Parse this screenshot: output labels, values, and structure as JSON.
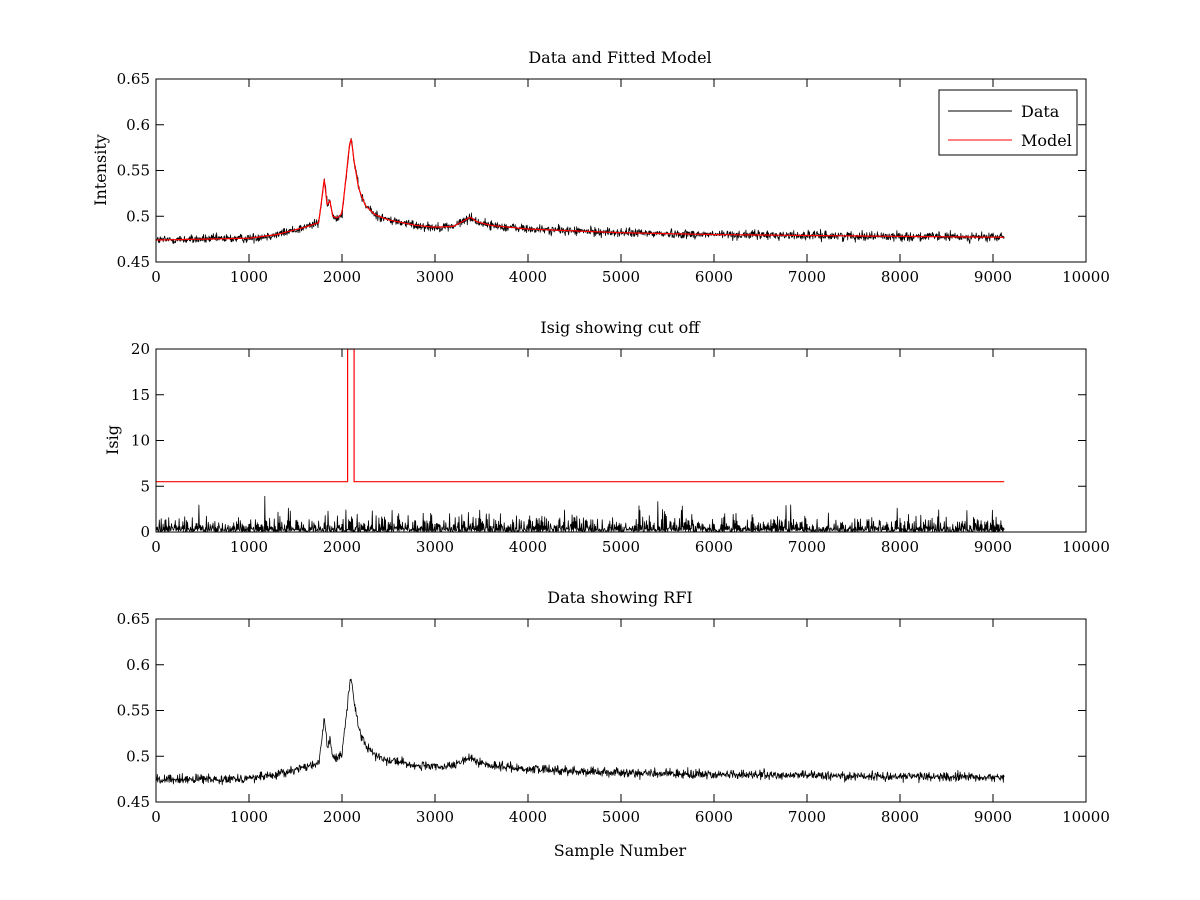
{
  "chart_data": [
    {
      "type": "line",
      "title": "Data and Fitted Model",
      "xlabel": "",
      "ylabel": "Intensity",
      "xlim": [
        0,
        10000
      ],
      "ylim": [
        0.45,
        0.65
      ],
      "xticks": [
        0,
        1000,
        2000,
        3000,
        4000,
        5000,
        6000,
        7000,
        8000,
        9000,
        10000
      ],
      "yticks": [
        0.45,
        0.5,
        0.55,
        0.6,
        0.65
      ],
      "ytick_labels": [
        "0.45",
        "0.5",
        "0.55",
        "0.6",
        "0.65"
      ],
      "grid": false,
      "legend": "top-right",
      "series": [
        {
          "name": "Data",
          "color": "#000000",
          "noise": 0.0055,
          "x": [
            0,
            500,
            1000,
            1300,
            1600,
            1750,
            1810,
            1840,
            1870,
            1900,
            1950,
            2000,
            2050,
            2080,
            2100,
            2130,
            2180,
            2250,
            2350,
            2500,
            2800,
            3000,
            3200,
            3380,
            3450,
            3600,
            4000,
            4500,
            5000,
            6000,
            7000,
            8000,
            9120
          ],
          "y": [
            0.474,
            0.475,
            0.476,
            0.48,
            0.488,
            0.493,
            0.541,
            0.512,
            0.517,
            0.5,
            0.498,
            0.503,
            0.548,
            0.578,
            0.585,
            0.56,
            0.53,
            0.512,
            0.502,
            0.496,
            0.49,
            0.488,
            0.489,
            0.499,
            0.494,
            0.49,
            0.486,
            0.484,
            0.482,
            0.48,
            0.479,
            0.478,
            0.477
          ]
        },
        {
          "name": "Model",
          "color": "#ff0000",
          "noise": 0,
          "x": [
            0,
            500,
            1000,
            1300,
            1600,
            1750,
            1810,
            1840,
            1870,
            1900,
            1950,
            2000,
            2050,
            2080,
            2100,
            2130,
            2180,
            2250,
            2350,
            2500,
            2800,
            3000,
            3200,
            3380,
            3450,
            3600,
            4000,
            4500,
            5000,
            6000,
            7000,
            8000,
            9120
          ],
          "y": [
            0.474,
            0.475,
            0.476,
            0.48,
            0.488,
            0.493,
            0.541,
            0.512,
            0.517,
            0.5,
            0.498,
            0.503,
            0.548,
            0.578,
            0.585,
            0.56,
            0.53,
            0.512,
            0.502,
            0.496,
            0.49,
            0.488,
            0.489,
            0.499,
            0.494,
            0.49,
            0.486,
            0.484,
            0.482,
            0.48,
            0.479,
            0.478,
            0.477
          ]
        }
      ]
    },
    {
      "type": "line",
      "title": "Isig showing cut off",
      "xlabel": "",
      "ylabel": "Isig",
      "xlim": [
        0,
        10000
      ],
      "ylim": [
        0,
        20
      ],
      "xticks": [
        0,
        1000,
        2000,
        3000,
        4000,
        5000,
        6000,
        7000,
        8000,
        9000,
        10000
      ],
      "yticks": [
        0,
        5,
        10,
        15,
        20
      ],
      "ytick_labels": [
        "0",
        "5",
        "10",
        "15",
        "20"
      ],
      "grid": false,
      "series": [
        {
          "color": "#000000",
          "kind": "noise",
          "x": [
            0,
            9120
          ],
          "y": [
            0.8,
            0.8
          ],
          "noise": 0.9
        },
        {
          "color": "#ff0000",
          "kind": "step",
          "x": [
            0,
            2060,
            2060,
            2130,
            2130,
            9120
          ],
          "y": [
            5.5,
            5.5,
            20,
            20,
            5.5,
            5.5
          ]
        }
      ]
    },
    {
      "type": "line",
      "title": "Data showing RFI",
      "xlabel": "Sample Number",
      "ylabel": "",
      "xlim": [
        0,
        10000
      ],
      "ylim": [
        0.45,
        0.65
      ],
      "xticks": [
        0,
        1000,
        2000,
        3000,
        4000,
        5000,
        6000,
        7000,
        8000,
        9000,
        10000
      ],
      "yticks": [
        0.45,
        0.5,
        0.55,
        0.6,
        0.65
      ],
      "ytick_labels": [
        "0.45",
        "0.5",
        "0.55",
        "0.6",
        "0.65"
      ],
      "grid": false,
      "series": [
        {
          "color": "#000000",
          "noise": 0.0055,
          "x": [
            0,
            500,
            1000,
            1300,
            1600,
            1750,
            1810,
            1840,
            1870,
            1900,
            1950,
            2000,
            2050,
            2080,
            2100,
            2130,
            2180,
            2250,
            2350,
            2500,
            2800,
            3000,
            3200,
            3380,
            3450,
            3600,
            4000,
            4500,
            5000,
            6000,
            7000,
            8000,
            9120
          ],
          "y": [
            0.474,
            0.475,
            0.476,
            0.48,
            0.488,
            0.493,
            0.541,
            0.512,
            0.517,
            0.5,
            0.498,
            0.503,
            0.548,
            0.578,
            0.585,
            0.56,
            0.53,
            0.512,
            0.502,
            0.496,
            0.49,
            0.488,
            0.489,
            0.499,
            0.494,
            0.49,
            0.486,
            0.484,
            0.482,
            0.48,
            0.479,
            0.478,
            0.477
          ]
        }
      ]
    }
  ]
}
